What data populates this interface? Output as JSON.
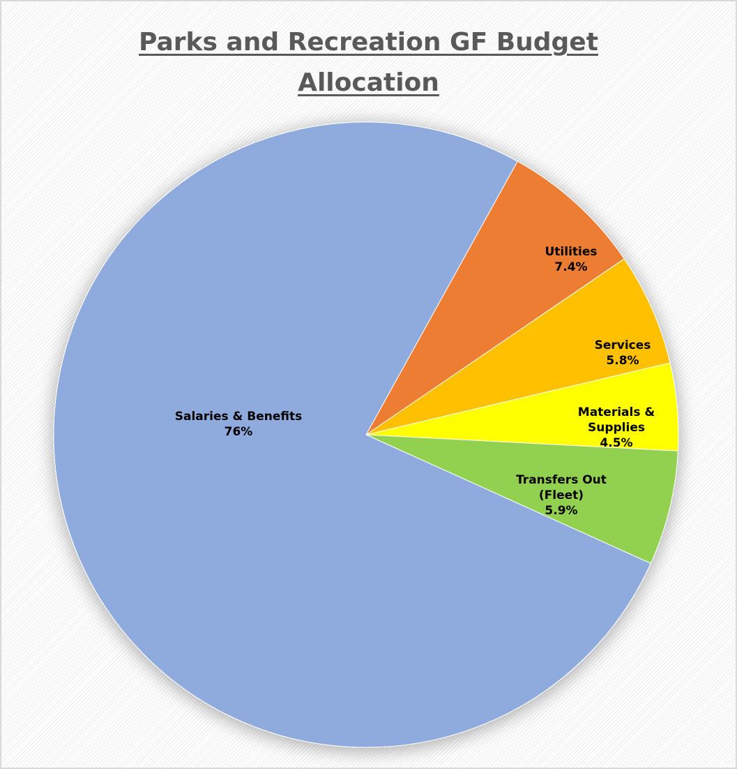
{
  "chart_data": {
    "type": "pie",
    "title_lines": [
      "Parks and Recreation GF Budget",
      "Allocation"
    ],
    "slices": [
      {
        "name": "Salaries & Benefits",
        "label_lines": [
          "Salaries & Benefits"
        ],
        "value": 76,
        "value_label": "76%",
        "color": "#8faadc"
      },
      {
        "name": "Utilities",
        "label_lines": [
          "Utilities"
        ],
        "value": 7.4,
        "value_label": "7.4%",
        "color": "#ed7d31"
      },
      {
        "name": "Services",
        "label_lines": [
          "Services"
        ],
        "value": 5.8,
        "value_label": "5.8%",
        "color": "#ffc000"
      },
      {
        "name": "Materials & Supplies",
        "label_lines": [
          "Materials &",
          "Supplies"
        ],
        "value": 4.5,
        "value_label": "4.5%",
        "color": "#ffff00"
      },
      {
        "name": "Transfers Out (Fleet)",
        "label_lines": [
          "Transfers Out",
          "(Fleet)"
        ],
        "value": 5.9,
        "value_label": "5.9%",
        "color": "#92d050"
      }
    ],
    "legend": "none",
    "start_order": "Utilities first, clockwise"
  }
}
